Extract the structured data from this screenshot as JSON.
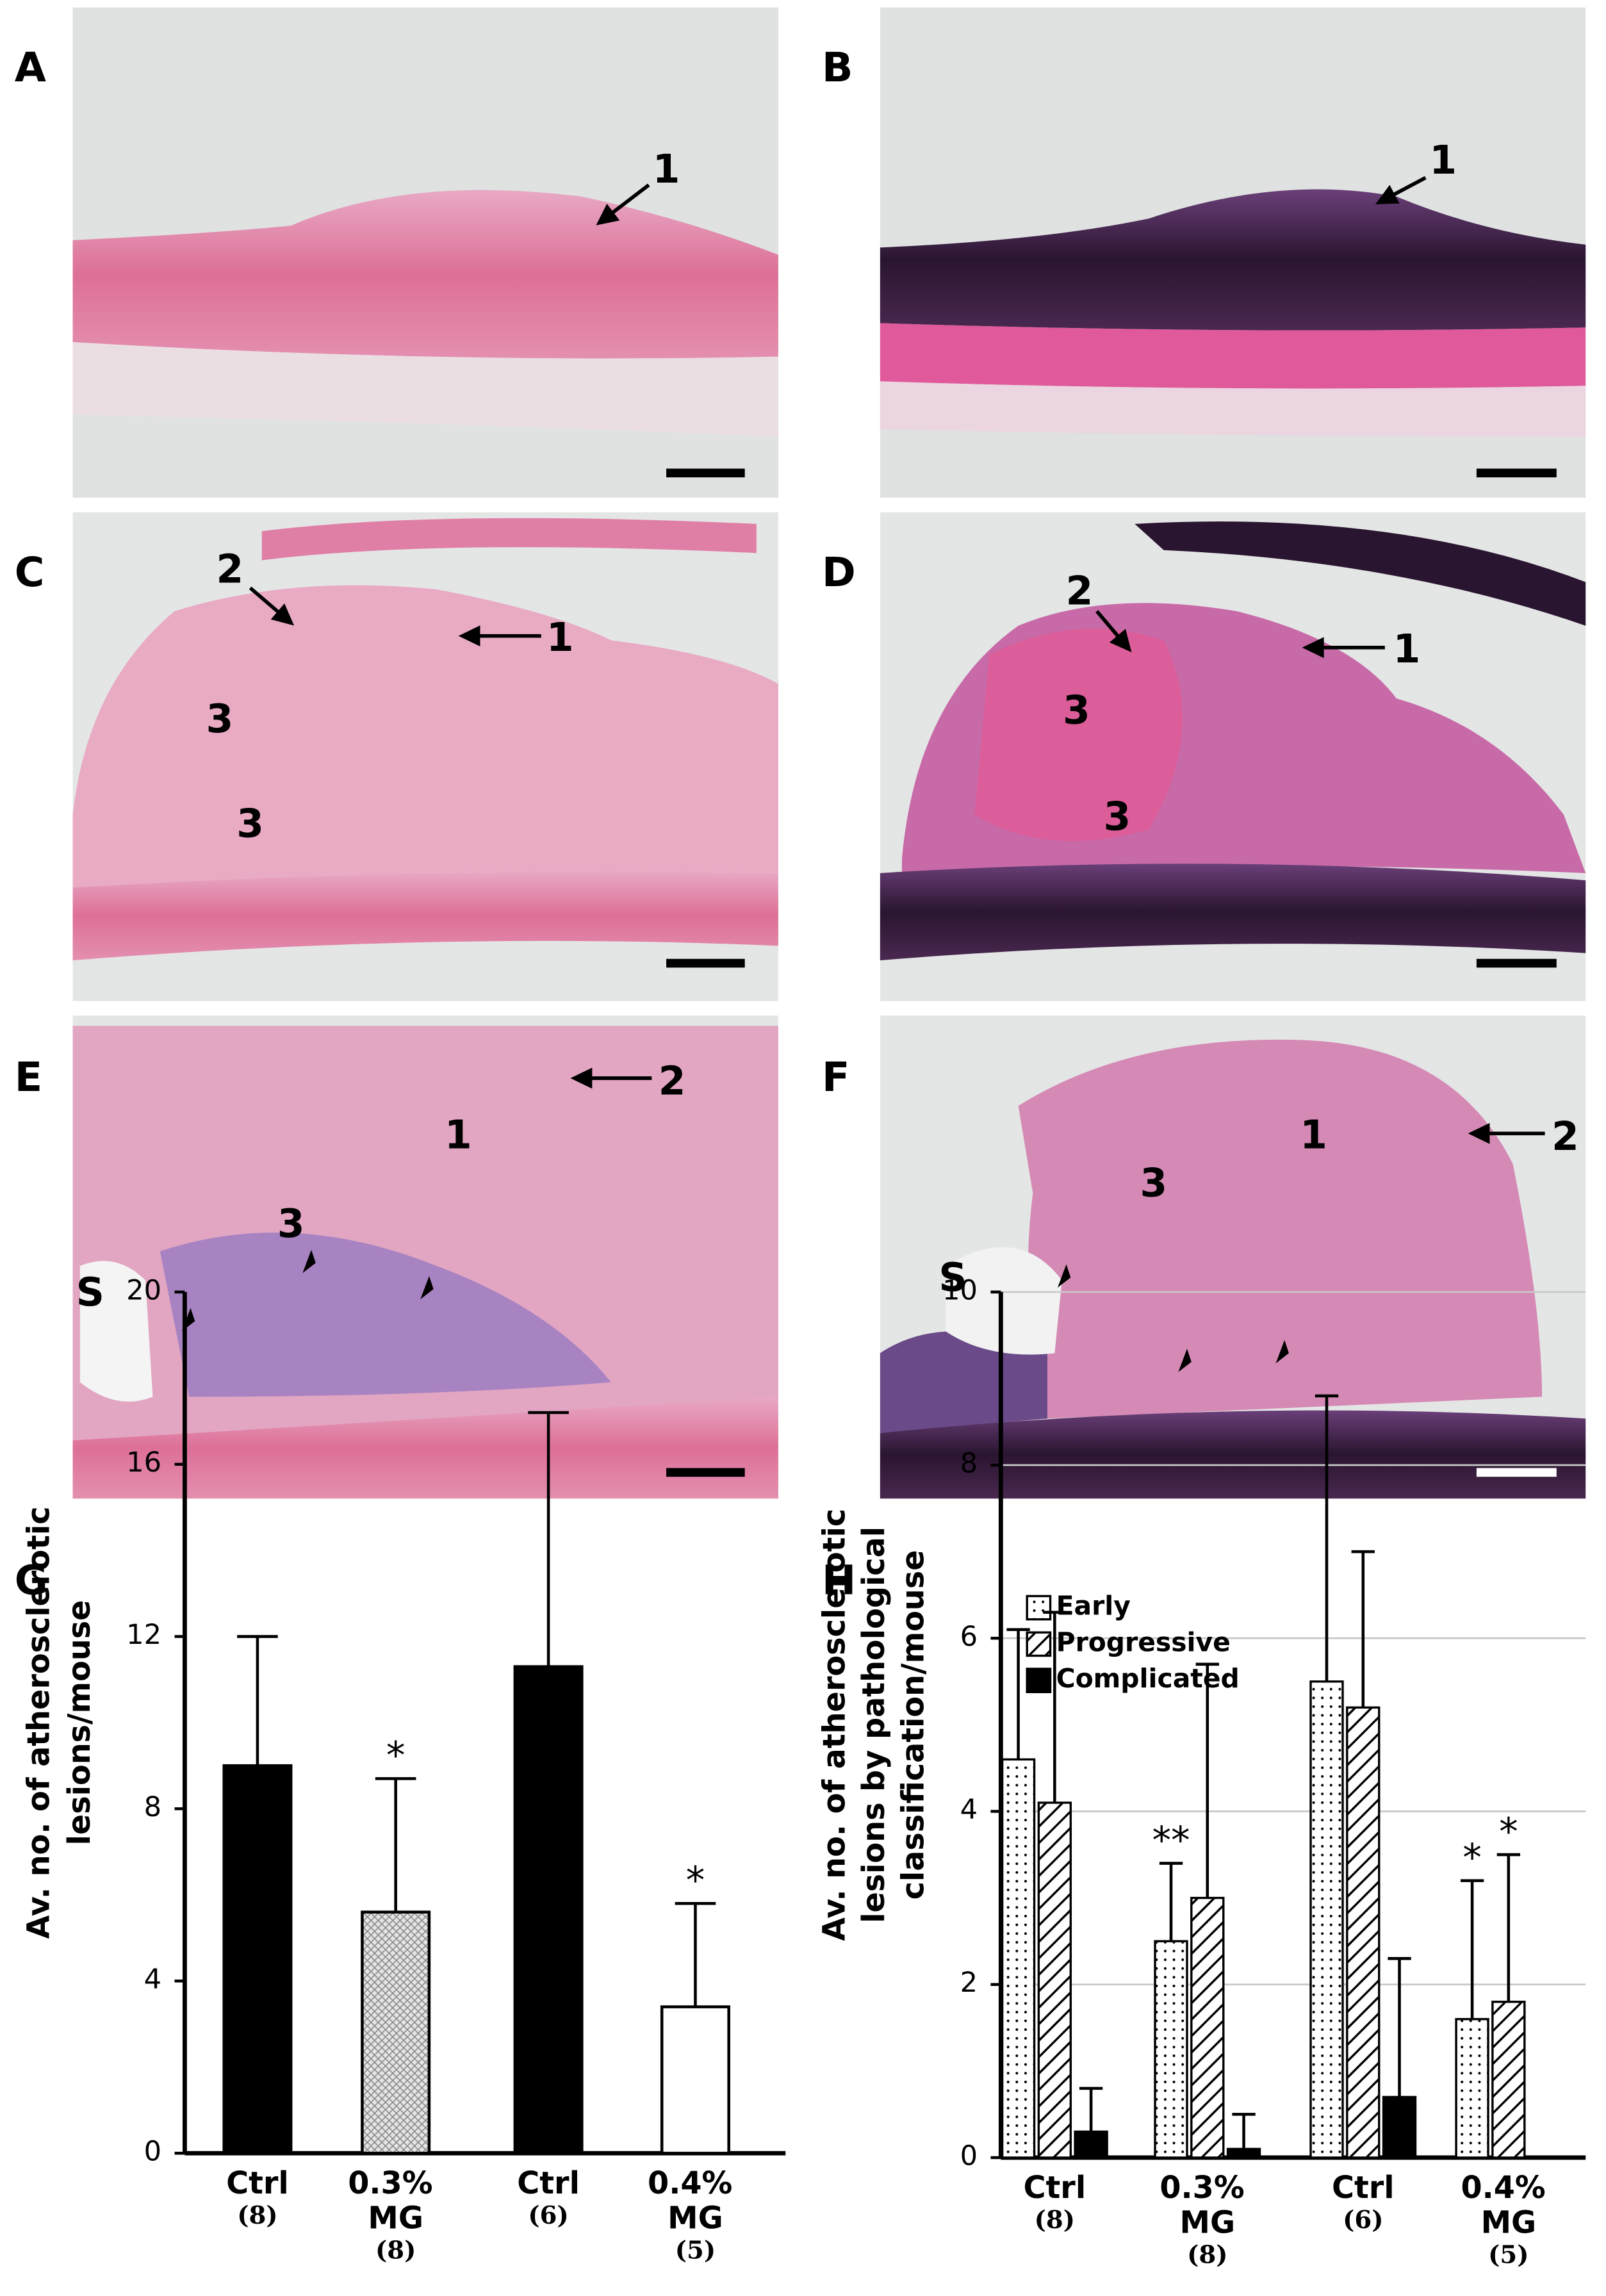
{
  "panels": [
    {
      "label": "A",
      "annotations": [
        "1"
      ]
    },
    {
      "label": "B",
      "annotations": [
        "1"
      ]
    },
    {
      "label": "C",
      "annotations": [
        "2",
        "1",
        "3",
        "3"
      ]
    },
    {
      "label": "D",
      "annotations": [
        "2",
        "1",
        "3",
        "3"
      ]
    },
    {
      "label": "E",
      "annotations": [
        "2",
        "1",
        "3",
        "S"
      ]
    },
    {
      "label": "F",
      "annotations": [
        "1",
        "2",
        "3",
        "S"
      ]
    }
  ],
  "chart_data": [
    {
      "type": "bar",
      "panel": "G",
      "ylabel": [
        "Av. no. of atherosclerotic",
        "lesions/mouse"
      ],
      "categories": [
        "Ctrl",
        "0.3% MG",
        "Ctrl",
        "0.4% MG"
      ],
      "group_sizes": [
        "(8)",
        "(8)",
        "(6)",
        "(5)"
      ],
      "values": [
        9.0,
        5.6,
        11.3,
        3.4
      ],
      "errors": [
        3.0,
        3.1,
        5.9,
        2.4
      ],
      "significance": [
        null,
        "*",
        null,
        "*"
      ],
      "fills": [
        "solid",
        "crosshatch",
        "solid",
        "none"
      ],
      "color": "#000000",
      "ylim": [
        0,
        20
      ],
      "yticks": [
        0,
        4,
        8,
        12,
        16,
        20
      ],
      "grid": false
    },
    {
      "type": "grouped_bar",
      "panel": "H",
      "ylabel": [
        "Av. no. of atherosclerotic",
        "lesions by pathological",
        "classification/mouse"
      ],
      "categories": [
        "Ctrl",
        "0.3% MG",
        "Ctrl",
        "0.4% MG"
      ],
      "group_sizes": [
        "(8)",
        "(8)",
        "(6)",
        "(5)"
      ],
      "series": [
        {
          "name": "Early",
          "pattern": "dots",
          "values": [
            4.6,
            2.5,
            5.5,
            1.6
          ],
          "errors": [
            1.5,
            0.9,
            3.3,
            1.6
          ],
          "significance": [
            null,
            "**",
            null,
            "*"
          ]
        },
        {
          "name": "Progressive",
          "pattern": "hatch",
          "values": [
            4.1,
            3.0,
            5.2,
            1.8
          ],
          "errors": [
            2.2,
            2.7,
            1.8,
            1.7
          ],
          "significance": [
            null,
            null,
            null,
            "*"
          ]
        },
        {
          "name": "Complicated",
          "pattern": "solid",
          "values": [
            0.3,
            0.1,
            0.7,
            0
          ],
          "errors": [
            0.5,
            0.4,
            1.6,
            null
          ],
          "significance": [
            null,
            null,
            null,
            null
          ]
        }
      ],
      "color": "#000000",
      "legend": "upper left",
      "ylim": [
        0,
        10
      ],
      "yticks": [
        0,
        2,
        4,
        6,
        8,
        10
      ],
      "grid": true
    }
  ]
}
